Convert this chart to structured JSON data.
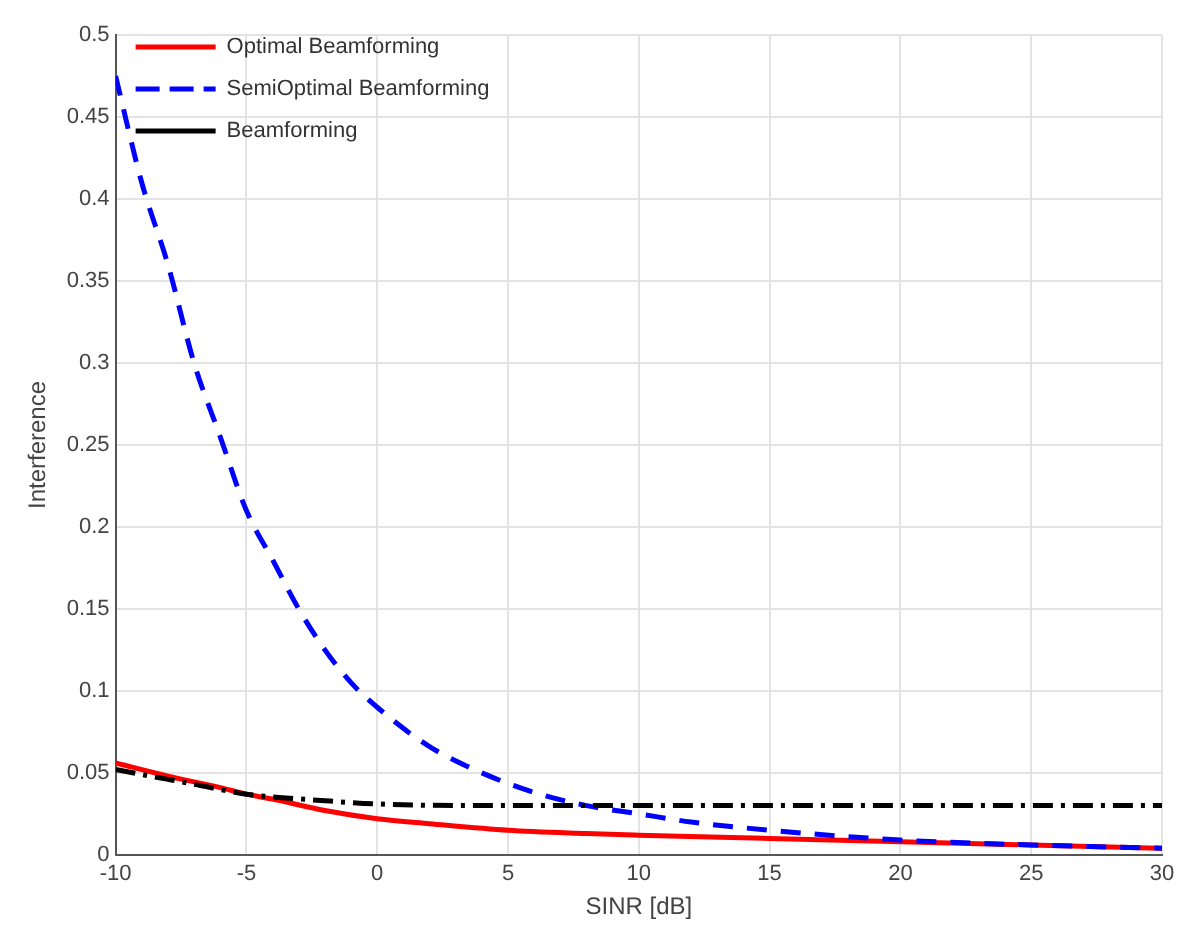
{
  "chart_data": {
    "type": "line",
    "xlabel": "SINR [dB]",
    "ylabel": "Interference",
    "xlim": [
      -10,
      30
    ],
    "xticks": [
      -10,
      -5,
      0,
      5,
      10,
      15,
      20,
      25,
      30
    ],
    "ylim": [
      0,
      0.5
    ],
    "yticks": [
      0,
      0.05,
      0.1,
      0.15,
      0.2,
      0.25,
      0.3,
      0.35,
      0.4,
      0.45,
      0.5
    ],
    "grid": true,
    "legend": "top left",
    "marker": "none",
    "series": [
      {
        "name": "Optimal Beamforming",
        "color": "#ff0000",
        "line_style": "solid",
        "x": [
          -10,
          -8,
          -6,
          -5,
          -4,
          -2,
          0,
          2,
          5,
          8,
          10,
          15,
          20,
          25,
          30
        ],
        "values": [
          0.056,
          0.048,
          0.041,
          0.037,
          0.034,
          0.027,
          0.022,
          0.019,
          0.015,
          0.013,
          0.012,
          0.01,
          0.008,
          0.006,
          0.004
        ]
      },
      {
        "name": "SemiOptimal Beamforming",
        "color": "#0000ff",
        "line_style": "dashed",
        "x": [
          -10,
          -9,
          -8,
          -7,
          -6,
          -5,
          -4,
          -3,
          -2,
          -1,
          0,
          2,
          4,
          6,
          8,
          10,
          12,
          15,
          20,
          25,
          30
        ],
        "values": [
          0.475,
          0.41,
          0.36,
          0.3,
          0.255,
          0.21,
          0.18,
          0.15,
          0.125,
          0.105,
          0.09,
          0.066,
          0.05,
          0.038,
          0.03,
          0.025,
          0.02,
          0.015,
          0.009,
          0.006,
          0.004
        ]
      },
      {
        "name": "Beamforming",
        "color": "#000000",
        "line_style": "dashdot",
        "x": [
          -10,
          -8,
          -7,
          -5,
          -2,
          0,
          5,
          10,
          20,
          30
        ],
        "values": [
          0.052,
          0.046,
          0.043,
          0.037,
          0.033,
          0.031,
          0.03,
          0.03,
          0.03,
          0.03
        ]
      }
    ]
  }
}
